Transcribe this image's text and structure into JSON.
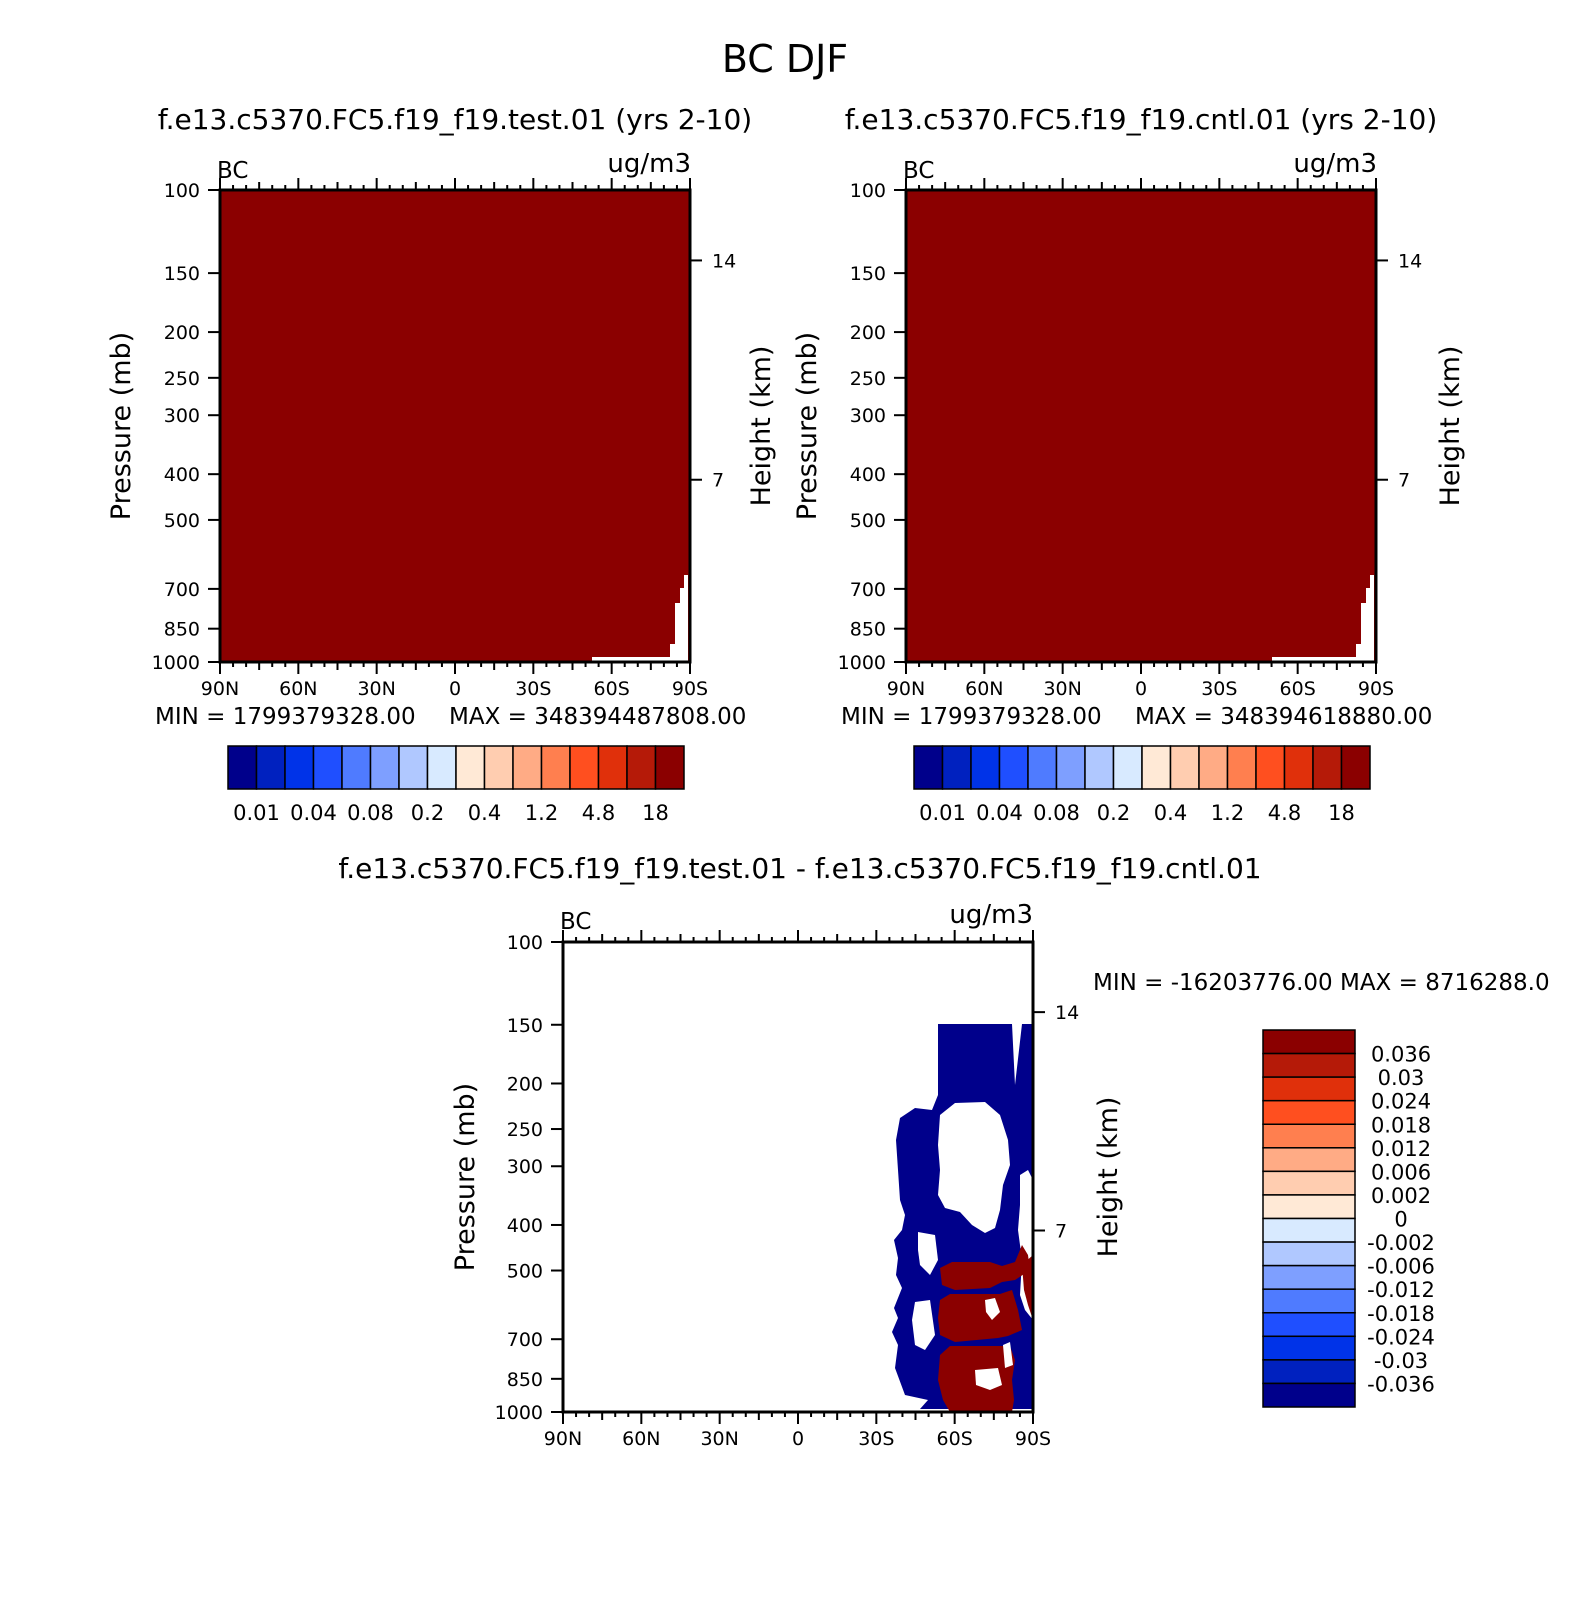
{
  "figure_title": "BC DJF",
  "colors": {
    "seq": [
      "#00008b",
      "#0021bf",
      "#0033e8",
      "#1f4fff",
      "#4f7bff",
      "#7e9fff",
      "#b0c8ff",
      "#d8eaff",
      "#ffe9d6",
      "#ffcdb0",
      "#ffab85",
      "#ff7f4f",
      "#ff4f1f",
      "#e0300b",
      "#b51a08",
      "#8b0000"
    ],
    "diff": [
      "#00008b",
      "#0021bf",
      "#0033e8",
      "#1f4fff",
      "#4f7bff",
      "#7e9fff",
      "#b0c8ff",
      "#d8eaff",
      "#ffe9d6",
      "#ffcdb0",
      "#ffab85",
      "#ff7f4f",
      "#ff4f1f",
      "#e0300b",
      "#b51a08",
      "#8b0000"
    ],
    "fill_high": "#8b0000",
    "fill_low": "#00008b"
  },
  "chart_data": [
    {
      "id": "test",
      "type": "heatmap",
      "title": "f.e13.c5370.FC5.f19_f19.test.01 (yrs 2-10)",
      "left_label": "BC",
      "units": "ug/m3",
      "ylabel": "Pressure (mb)",
      "y2label": "Height (km)",
      "x_ticks": [
        "90N",
        "60N",
        "30N",
        "0",
        "30S",
        "60S",
        "90S"
      ],
      "y_ticks": [
        "100",
        "150",
        "200",
        "250",
        "300",
        "400",
        "500",
        "700",
        "850",
        "1000"
      ],
      "y2_ticks": [
        "14",
        "7"
      ],
      "min_label": "MIN = 1799379328.00",
      "max_label": "MAX = 348394487808.00",
      "colorbar_labels": [
        "0.01",
        "0.04",
        "0.08",
        "0.2",
        "0.4",
        "1.2",
        "4.8",
        "18"
      ]
    },
    {
      "id": "cntl",
      "type": "heatmap",
      "title": "f.e13.c5370.FC5.f19_f19.cntl.01 (yrs 2-10)",
      "left_label": "BC",
      "units": "ug/m3",
      "ylabel": "Pressure (mb)",
      "y2label": "Height (km)",
      "x_ticks": [
        "90N",
        "60N",
        "30N",
        "0",
        "30S",
        "60S",
        "90S"
      ],
      "y_ticks": [
        "100",
        "150",
        "200",
        "250",
        "300",
        "400",
        "500",
        "700",
        "850",
        "1000"
      ],
      "y2_ticks": [
        "14",
        "7"
      ],
      "min_label": "MIN = 1799379328.00",
      "max_label": "MAX = 348394618880.00",
      "colorbar_labels": [
        "0.01",
        "0.04",
        "0.08",
        "0.2",
        "0.4",
        "1.2",
        "4.8",
        "18"
      ]
    },
    {
      "id": "diff",
      "type": "heatmap",
      "title": "f.e13.c5370.FC5.f19_f19.test.01 - f.e13.c5370.FC5.f19_f19.cntl.01",
      "left_label": "BC",
      "units": "ug/m3",
      "ylabel": "Pressure (mb)",
      "y2label": "Height (km)",
      "x_ticks": [
        "90N",
        "60N",
        "30N",
        "0",
        "30S",
        "60S",
        "90S"
      ],
      "y_ticks": [
        "100",
        "150",
        "200",
        "250",
        "300",
        "400",
        "500",
        "700",
        "850",
        "1000"
      ],
      "y2_ticks": [
        "14",
        "7"
      ],
      "minmax_label": "MIN = -16203776.00   MAX = 8716288.0",
      "colorbar_labels": [
        "0.036",
        "0.03",
        "0.024",
        "0.018",
        "0.012",
        "0.006",
        "0.002",
        "0",
        "-0.002",
        "-0.006",
        "-0.012",
        "-0.018",
        "-0.024",
        "-0.03",
        "-0.036"
      ]
    }
  ]
}
